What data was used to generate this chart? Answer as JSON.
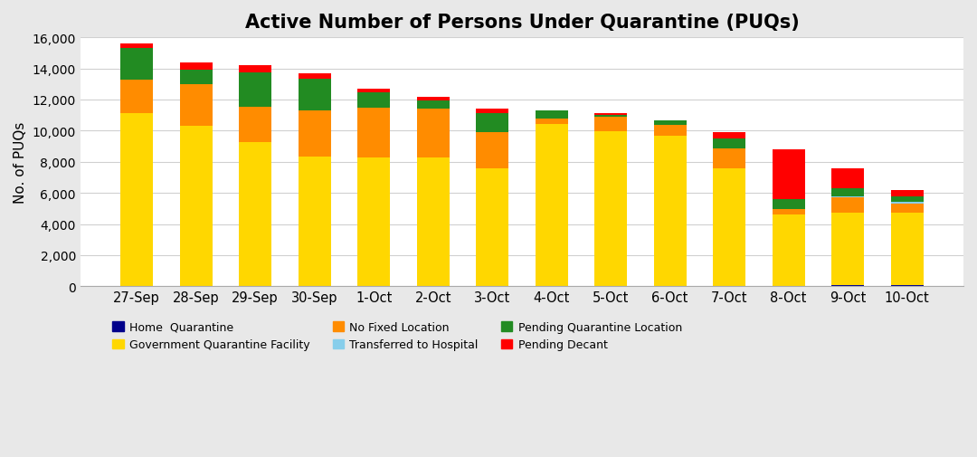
{
  "dates": [
    "27-Sep",
    "28-Sep",
    "29-Sep",
    "30-Sep",
    "1-Oct",
    "2-Oct",
    "3-Oct",
    "4-Oct",
    "5-Oct",
    "6-Oct",
    "7-Oct",
    "8-Oct",
    "9-Oct",
    "10-Oct"
  ],
  "home_quarantine": [
    0,
    0,
    0,
    0,
    0,
    0,
    0,
    0,
    0,
    0,
    0,
    0,
    100,
    100
  ],
  "govt_quarantine_facility": [
    11100,
    10300,
    9250,
    8350,
    8300,
    8300,
    7600,
    10400,
    9950,
    9650,
    7600,
    4600,
    4650,
    4650
  ],
  "no_fixed_location": [
    2200,
    2700,
    2300,
    2950,
    3150,
    3100,
    2300,
    400,
    950,
    700,
    1250,
    350,
    950,
    550
  ],
  "transferred_to_hospital": [
    0,
    0,
    0,
    0,
    0,
    0,
    0,
    0,
    0,
    0,
    0,
    0,
    100,
    100
  ],
  "pending_quarantine_location": [
    2000,
    900,
    2200,
    2050,
    1000,
    550,
    1200,
    500,
    100,
    300,
    650,
    650,
    500,
    400
  ],
  "pending_decant": [
    300,
    500,
    450,
    350,
    250,
    200,
    300,
    0,
    100,
    0,
    400,
    3200,
    1300,
    400
  ],
  "colors": {
    "home_quarantine": "#00008B",
    "govt_quarantine_facility": "#FFD700",
    "no_fixed_location": "#FF8C00",
    "transferred_to_hospital": "#87CEEB",
    "pending_quarantine_location": "#228B22",
    "pending_decant": "#FF0000"
  },
  "title": "Active Number of Persons Under Quarantine (PUQs)",
  "ylabel": "No. of PUQs",
  "ylim": [
    0,
    16000
  ],
  "yticks": [
    0,
    2000,
    4000,
    6000,
    8000,
    10000,
    12000,
    14000,
    16000
  ],
  "legend_labels": {
    "home_quarantine": "Home  Quarantine",
    "govt_quarantine_facility": "Government Quarantine Facility",
    "no_fixed_location": "No Fixed Location",
    "transferred_to_hospital": "Transferred to Hospital",
    "pending_quarantine_location": "Pending Quarantine Location",
    "pending_decant": "Pending Decant"
  },
  "background_color": "#ffffff",
  "outer_background": "#e8e8e8",
  "title_fontsize": 15,
  "bar_width": 0.55,
  "legend_row1": [
    "home_quarantine",
    "govt_quarantine_facility",
    "no_fixed_location"
  ],
  "legend_row2": [
    "transferred_to_hospital",
    "pending_quarantine_location",
    "pending_decant"
  ]
}
